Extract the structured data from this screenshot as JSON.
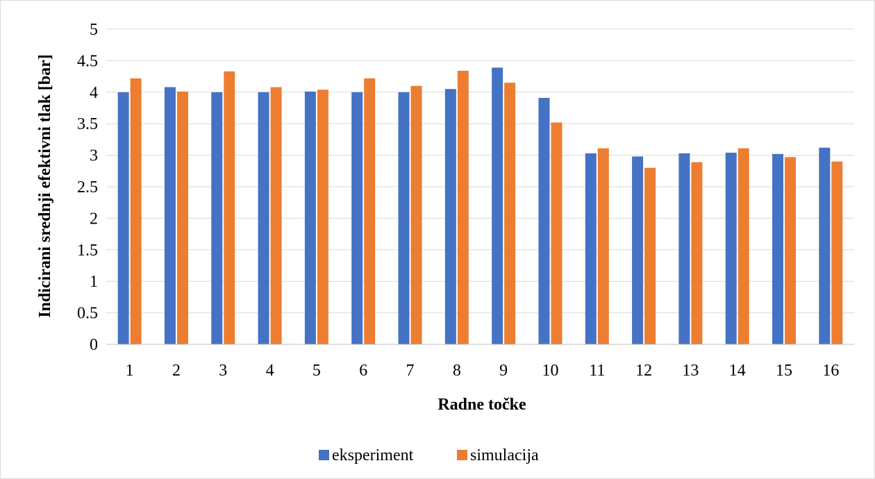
{
  "chart_data": {
    "type": "bar",
    "categories": [
      "1",
      "2",
      "3",
      "4",
      "5",
      "6",
      "7",
      "8",
      "9",
      "10",
      "11",
      "12",
      "13",
      "14",
      "15",
      "16"
    ],
    "series": [
      {
        "name": "eksperiment",
        "color": "#4472C4",
        "values": [
          4.0,
          4.08,
          4.0,
          4.0,
          4.01,
          4.0,
          4.0,
          4.05,
          4.39,
          3.91,
          3.03,
          2.98,
          3.03,
          3.04,
          3.02,
          3.12
        ]
      },
      {
        "name": "simulacija",
        "color": "#ED7D31",
        "values": [
          4.22,
          4.01,
          4.33,
          4.08,
          4.04,
          4.22,
          4.1,
          4.34,
          4.15,
          3.52,
          3.11,
          2.8,
          2.89,
          3.11,
          2.97,
          2.9
        ]
      }
    ],
    "yticks": [
      "0",
      "0.5",
      "1",
      "1.5",
      "2",
      "2.5",
      "3",
      "3.5",
      "4",
      "4.5",
      "5"
    ],
    "ylim": [
      0,
      5
    ],
    "xlabel": "Radne točke",
    "ylabel": "Indicirani srednji efektivni tlak [bar]",
    "grid": true,
    "legend_position": "bottom"
  }
}
